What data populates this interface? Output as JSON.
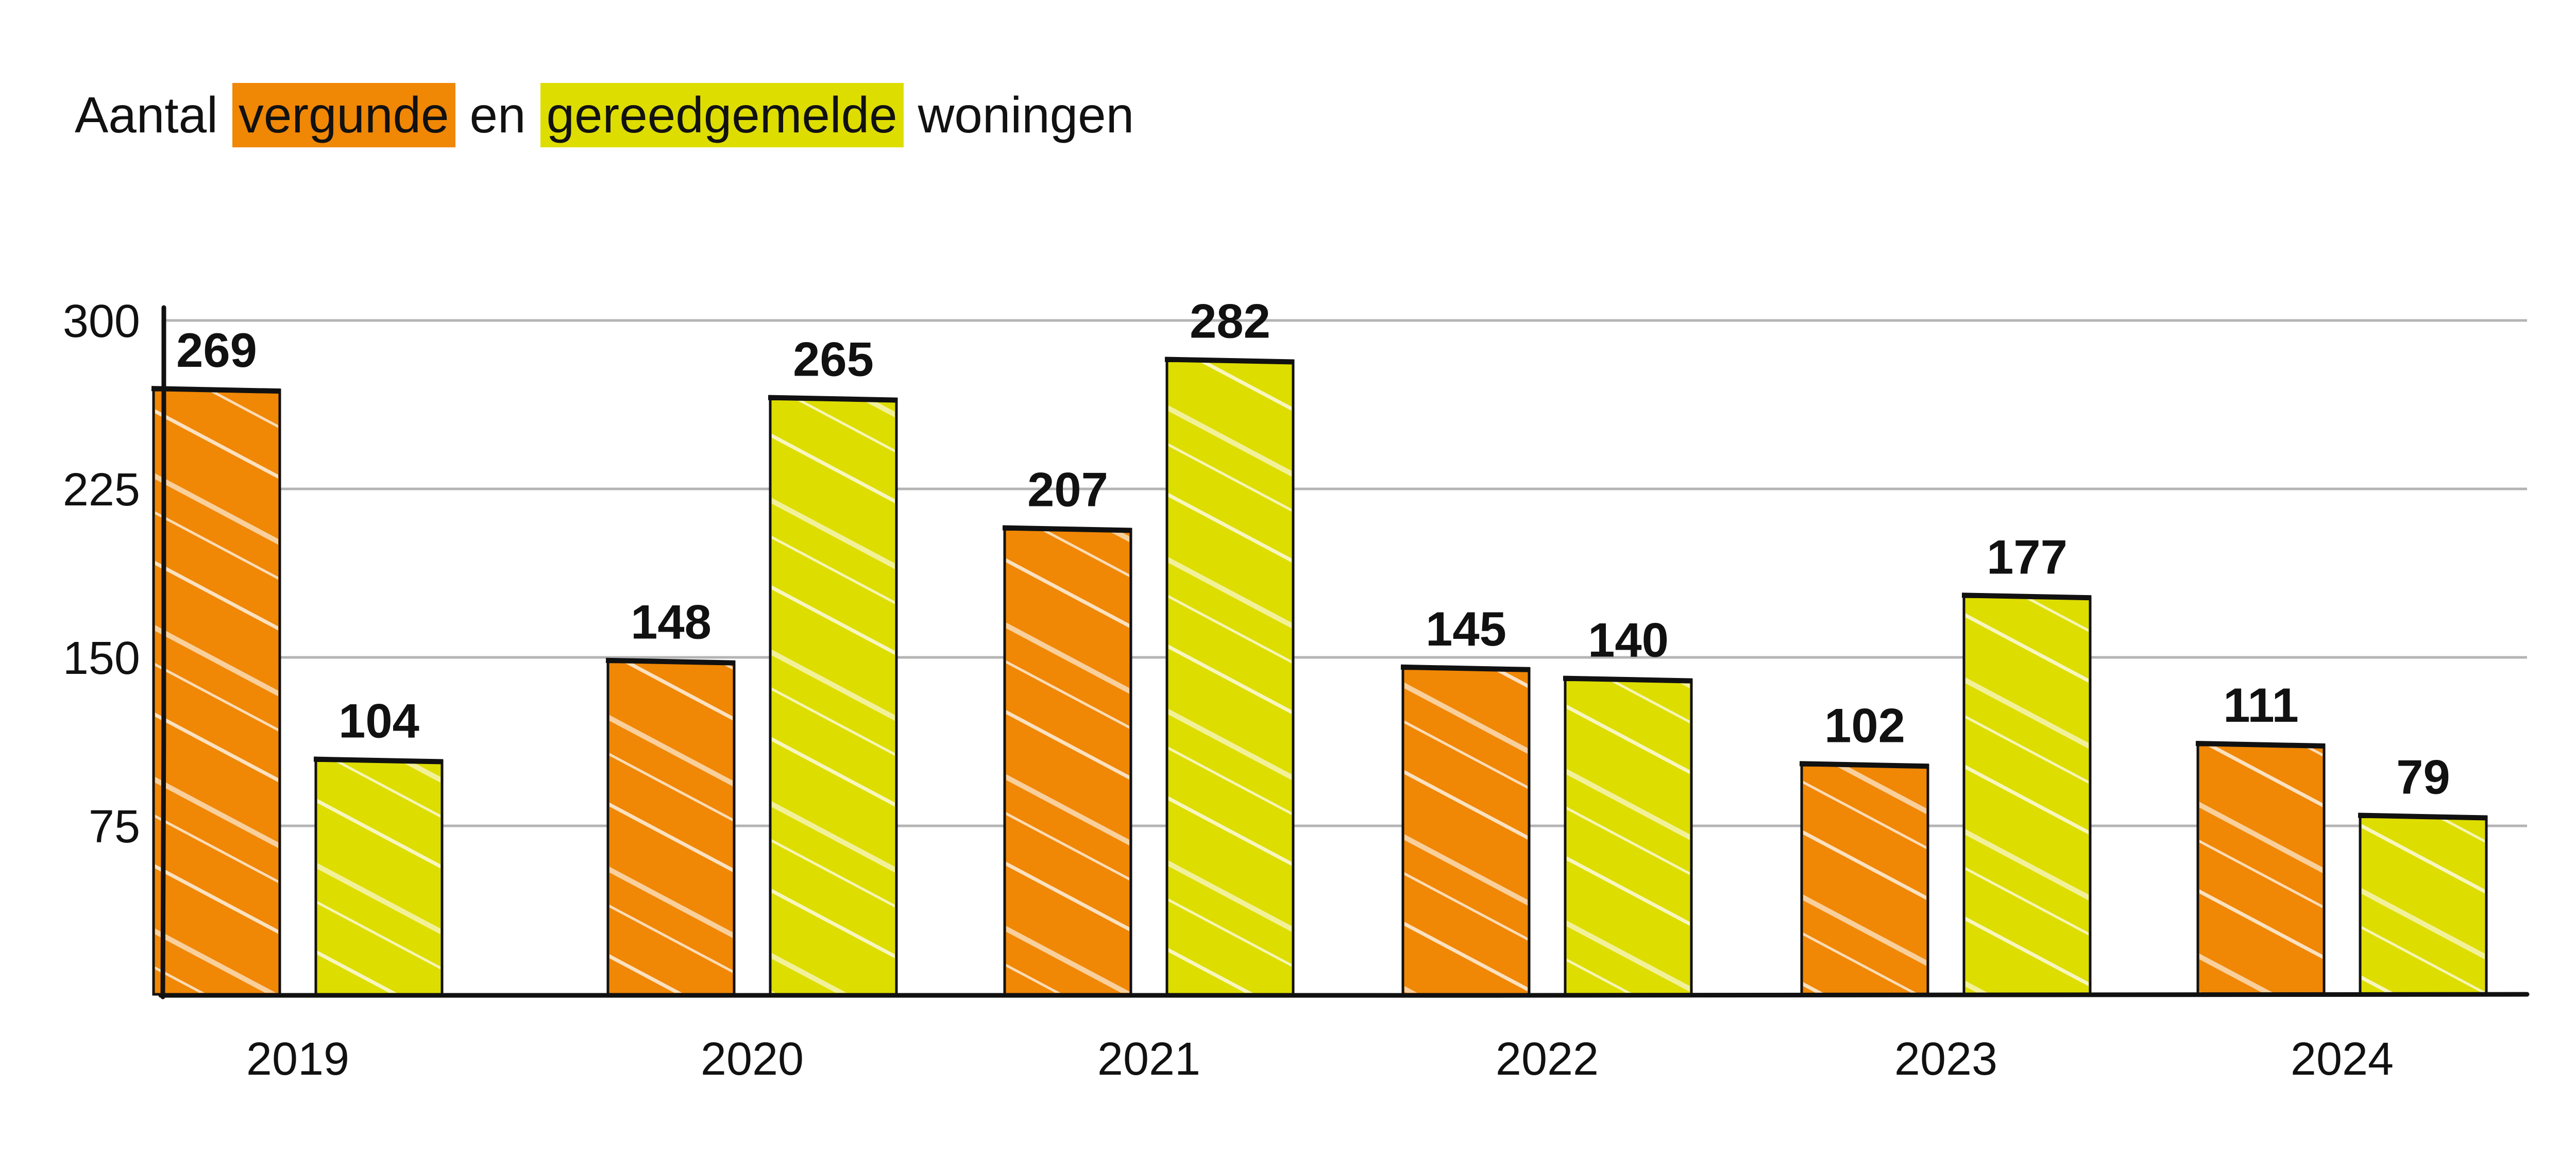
{
  "title": {
    "prefix": "Aantal",
    "highlight_a": "vergunde",
    "middle": "en",
    "highlight_b": "gereedgemelde",
    "suffix": "woningen"
  },
  "colors": {
    "vergunde": "#f08705",
    "gereedgemelde": "#dedd00",
    "axis": "#111111",
    "grid": "#b4b4b4"
  },
  "chart_data": {
    "type": "bar",
    "title": "Aantal vergunde en gereedgemelde woningen",
    "categories": [
      "2019",
      "2020",
      "2021",
      "2022",
      "2023",
      "2024"
    ],
    "series": [
      {
        "name": "vergunde",
        "values": [
          269,
          148,
          207,
          145,
          102,
          111
        ]
      },
      {
        "name": "gereedgemelde",
        "values": [
          104,
          265,
          282,
          140,
          177,
          79
        ]
      }
    ],
    "value_labels": [
      [
        "269",
        "148",
        "207",
        "145",
        "102",
        "111"
      ],
      [
        "104",
        "265",
        "282",
        "140",
        "177",
        "79"
      ]
    ],
    "yticks": [
      "75",
      "150",
      "225",
      "300"
    ],
    "ylim": [
      0,
      300
    ],
    "xlabel": "",
    "ylabel": "",
    "grid": true,
    "legend": "title"
  }
}
